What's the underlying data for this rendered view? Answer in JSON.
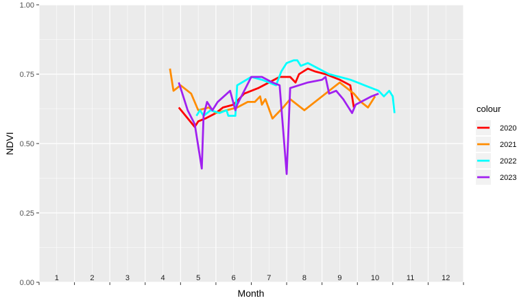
{
  "chart_data": {
    "type": "line",
    "xlabel": "Month",
    "ylabel": "NDVI",
    "ylim": [
      0,
      1
    ],
    "yticks": [
      "0.00",
      "0.25",
      "0.50",
      "0.75",
      "1.00"
    ],
    "xlim": [
      0.5,
      12.5
    ],
    "month_labels": [
      "1",
      "2",
      "3",
      "4",
      "5",
      "6",
      "7",
      "8",
      "9",
      "10",
      "11",
      "12"
    ],
    "grid": true,
    "legend": {
      "title": "colour",
      "position": "right"
    },
    "series": [
      {
        "name": "2020",
        "color": "#ff0000",
        "x": [
          4.45,
          4.9,
          5.0,
          5.2,
          5.5,
          5.7,
          6.0,
          6.3,
          6.7,
          7.0,
          7.3,
          7.6,
          7.75,
          7.85,
          8.1,
          8.3,
          8.6,
          9.0,
          9.3,
          9.4
        ],
        "y": [
          0.63,
          0.56,
          0.58,
          0.59,
          0.61,
          0.63,
          0.64,
          0.68,
          0.7,
          0.72,
          0.74,
          0.74,
          0.72,
          0.75,
          0.77,
          0.76,
          0.75,
          0.73,
          0.71,
          0.63
        ]
      },
      {
        "name": "2021",
        "color": "#ff8c00",
        "x": [
          4.2,
          4.3,
          4.5,
          4.8,
          5.0,
          5.3,
          5.5,
          5.8,
          6.1,
          6.4,
          6.6,
          6.75,
          6.8,
          6.9,
          7.1,
          7.4,
          7.6,
          8.0,
          8.5,
          9.0,
          9.4,
          9.6,
          9.8,
          10.0
        ],
        "y": [
          0.77,
          0.69,
          0.71,
          0.68,
          0.62,
          0.63,
          0.61,
          0.62,
          0.63,
          0.65,
          0.65,
          0.67,
          0.64,
          0.66,
          0.59,
          0.63,
          0.66,
          0.62,
          0.67,
          0.72,
          0.68,
          0.65,
          0.63,
          0.67
        ]
      },
      {
        "name": "2022",
        "color": "#00ffff",
        "x": [
          4.95,
          5.05,
          5.15,
          5.35,
          5.6,
          5.8,
          5.85,
          6.05,
          6.1,
          6.5,
          6.8,
          7.2,
          7.35,
          7.5,
          7.7,
          7.8,
          7.9,
          8.1,
          8.4,
          8.7,
          9.0,
          9.3,
          9.5,
          9.7,
          9.9,
          10.1,
          10.25,
          10.4,
          10.5,
          10.55
        ],
        "y": [
          0.6,
          0.62,
          0.6,
          0.62,
          0.61,
          0.62,
          0.6,
          0.6,
          0.71,
          0.74,
          0.73,
          0.71,
          0.76,
          0.79,
          0.8,
          0.8,
          0.78,
          0.79,
          0.77,
          0.75,
          0.74,
          0.73,
          0.72,
          0.71,
          0.7,
          0.69,
          0.67,
          0.69,
          0.67,
          0.61
        ]
      },
      {
        "name": "2023",
        "color": "#a020f0",
        "x": [
          4.45,
          4.7,
          4.9,
          5.1,
          5.15,
          5.25,
          5.4,
          5.55,
          5.9,
          6.05,
          6.1,
          6.5,
          6.8,
          7.1,
          7.3,
          7.5,
          7.6,
          8.1,
          8.5,
          8.6,
          8.7,
          8.9,
          9.1,
          9.35,
          9.45,
          9.6,
          9.9,
          10.1
        ],
        "y": [
          0.72,
          0.62,
          0.57,
          0.41,
          0.6,
          0.65,
          0.62,
          0.65,
          0.69,
          0.62,
          0.64,
          0.74,
          0.74,
          0.72,
          0.71,
          0.39,
          0.7,
          0.72,
          0.73,
          0.74,
          0.68,
          0.69,
          0.66,
          0.61,
          0.64,
          0.65,
          0.67,
          0.68
        ]
      }
    ]
  }
}
